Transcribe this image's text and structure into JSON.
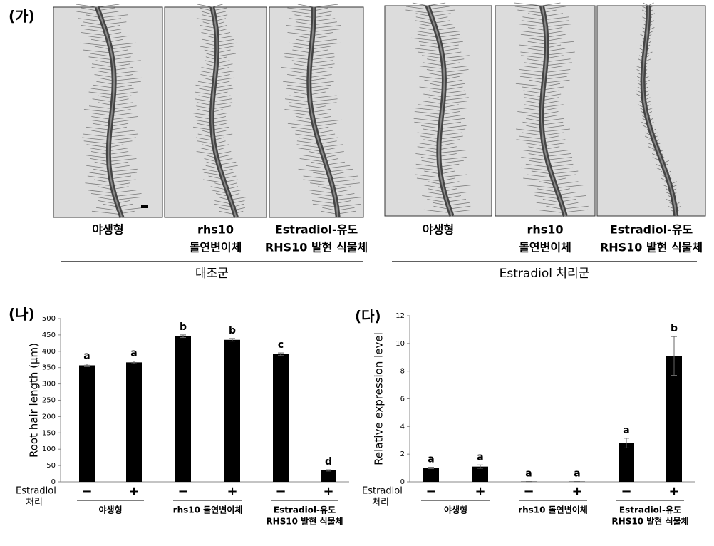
{
  "panel_a": {
    "label": "(가)",
    "groups": [
      {
        "caption": "대조군",
        "images": [
          [
            "야생형"
          ],
          [
            "rhs10",
            "돌연변이체"
          ],
          [
            "Estradiol-유도",
            "RHS10 발현 식물체"
          ]
        ]
      },
      {
        "caption": "Estradiol 처리군",
        "images": [
          [
            "야생형"
          ],
          [
            "rhs10",
            "돌연변이체"
          ],
          [
            "Estradiol-유도",
            "RHS10 발현 식물체"
          ]
        ]
      }
    ]
  },
  "chart_data": [
    {
      "type": "bar",
      "panel": "(나)",
      "y_label": "Root hair length (μm)",
      "row_label": [
        "Estradiol",
        "처리"
      ],
      "categories": [
        "−",
        "+",
        "−",
        "+",
        "−",
        "+"
      ],
      "groups": [
        [
          "야생형"
        ],
        [
          "rhs10 돌연변이체"
        ],
        [
          "Estradiol-유도",
          "RHS10 발현 식물체"
        ]
      ],
      "values": [
        357,
        366,
        446,
        435,
        391,
        35
      ],
      "errors": [
        4,
        4,
        4,
        4,
        4,
        2
      ],
      "annotations": [
        "a",
        "a",
        "b",
        "b",
        "c",
        "d"
      ],
      "color": "#000000",
      "ylim": [
        0,
        500
      ],
      "yticks": [
        0,
        50,
        100,
        150,
        200,
        250,
        300,
        350,
        400,
        450,
        500
      ]
    },
    {
      "type": "bar",
      "panel": "(다)",
      "y_label": "Relative expression level",
      "row_label": [
        "Estradiol",
        "처리"
      ],
      "categories": [
        "−",
        "+",
        "−",
        "+",
        "−",
        "+"
      ],
      "groups": [
        [
          "야생형"
        ],
        [
          "rhs10 돌연변이체"
        ],
        [
          "Estradiol-유도",
          "RHS10 발현 식물체"
        ]
      ],
      "values": [
        1.0,
        1.1,
        0.02,
        0.02,
        2.8,
        9.1
      ],
      "errors": [
        0.05,
        0.12,
        0,
        0,
        0.35,
        1.4
      ],
      "annotations": [
        "a",
        "a",
        "a",
        "a",
        "a",
        "b"
      ],
      "color": "#000000",
      "ylim": [
        0,
        12
      ],
      "yticks": [
        0,
        2,
        4,
        6,
        8,
        10,
        12
      ]
    }
  ]
}
